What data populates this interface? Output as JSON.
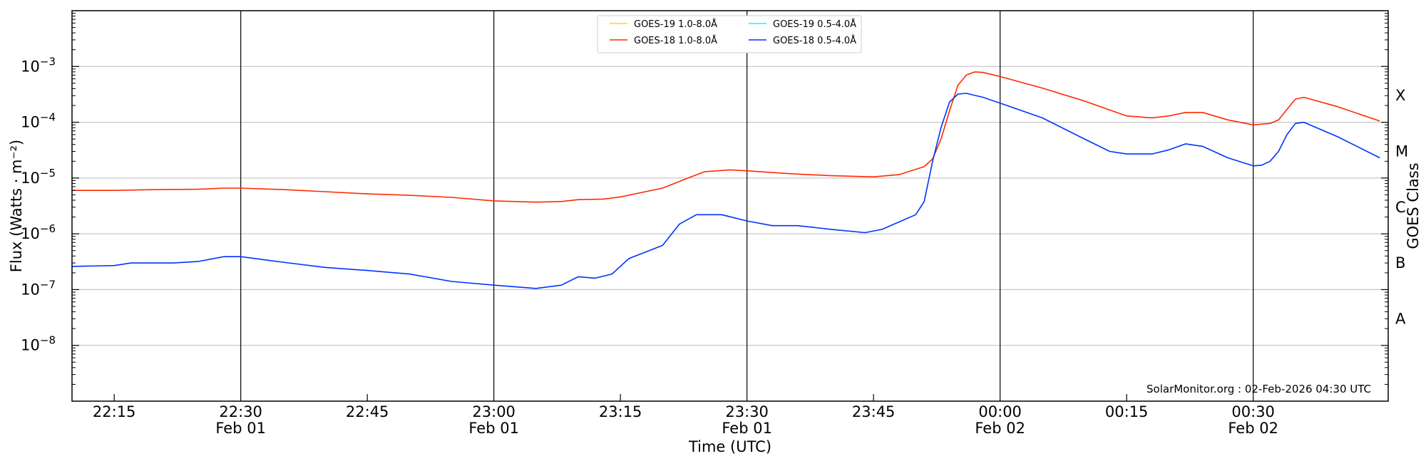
{
  "chart_data": {
    "type": "line",
    "ylabel": "Flux (Watts · m⁻²)",
    "y2label": "GOES Class",
    "xlabel": "Time (UTC)",
    "credit": "SolarMonitor.org : 02-Feb-2026 04:30 UTC",
    "y_scale": "log",
    "ylim": [
      1e-09,
      0.01
    ],
    "xlim": [
      "2026-02-01 22:10",
      "2026-02-02 00:46"
    ],
    "grid": "horizontal at decades; vertical lines at every half hour",
    "legend_position": "top-center",
    "y_ticks": [
      {
        "value": 1e-08,
        "base": "10",
        "exp": "−8"
      },
      {
        "value": 1e-07,
        "base": "10",
        "exp": "−7"
      },
      {
        "value": 1e-06,
        "base": "10",
        "exp": "−6"
      },
      {
        "value": 1e-05,
        "base": "10",
        "exp": "−5"
      },
      {
        "value": 0.0001,
        "base": "10",
        "exp": "−4"
      },
      {
        "value": 0.001,
        "base": "10",
        "exp": "−3"
      }
    ],
    "x_ticks": [
      {
        "time": "2026-02-01 22:15",
        "label": "22:15",
        "date": ""
      },
      {
        "time": "2026-02-01 22:30",
        "label": "22:30",
        "date": "Feb 01"
      },
      {
        "time": "2026-02-01 22:45",
        "label": "22:45",
        "date": ""
      },
      {
        "time": "2026-02-01 23:00",
        "label": "23:00",
        "date": "Feb 01"
      },
      {
        "time": "2026-02-01 23:15",
        "label": "23:15",
        "date": ""
      },
      {
        "time": "2026-02-01 23:30",
        "label": "23:30",
        "date": "Feb 01"
      },
      {
        "time": "2026-02-01 23:45",
        "label": "23:45",
        "date": ""
      },
      {
        "time": "2026-02-02 00:00",
        "label": "00:00",
        "date": "Feb 02"
      },
      {
        "time": "2026-02-02 00:15",
        "label": "00:15",
        "date": ""
      },
      {
        "time": "2026-02-02 00:30",
        "label": "00:30",
        "date": "Feb 02"
      }
    ],
    "goes_classes": [
      {
        "label": "A",
        "value": 3e-08
      },
      {
        "label": "B",
        "value": 3e-07
      },
      {
        "label": "C",
        "value": 3e-06
      },
      {
        "label": "M",
        "value": 3e-05
      },
      {
        "label": "X",
        "value": 0.0003
      }
    ],
    "series": [
      {
        "name": "GOES-19 1.0-8.0Å",
        "color": "#ffd700",
        "points": []
      },
      {
        "name": "GOES-19 0.5-4.0Å",
        "color": "#00ffff",
        "points": []
      },
      {
        "name": "GOES-18 1.0-8.0Å",
        "color": "#ff2a00",
        "points": [
          [
            "2026-02-01 22:10",
            6e-06
          ],
          [
            "2026-02-01 22:15",
            6e-06
          ],
          [
            "2026-02-01 22:20",
            6.2e-06
          ],
          [
            "2026-02-01 22:25",
            6.3e-06
          ],
          [
            "2026-02-01 22:28",
            6.6e-06
          ],
          [
            "2026-02-01 22:30",
            6.6e-06
          ],
          [
            "2026-02-01 22:35",
            6.2e-06
          ],
          [
            "2026-02-01 22:40",
            5.7e-06
          ],
          [
            "2026-02-01 22:45",
            5.2e-06
          ],
          [
            "2026-02-01 22:50",
            4.9e-06
          ],
          [
            "2026-02-01 22:55",
            4.5e-06
          ],
          [
            "2026-02-01 23:00",
            3.9e-06
          ],
          [
            "2026-02-01 23:05",
            3.7e-06
          ],
          [
            "2026-02-01 23:08",
            3.8e-06
          ],
          [
            "2026-02-01 23:10",
            4.1e-06
          ],
          [
            "2026-02-01 23:13",
            4.2e-06
          ],
          [
            "2026-02-01 23:15",
            4.6e-06
          ],
          [
            "2026-02-01 23:20",
            6.6e-06
          ],
          [
            "2026-02-01 23:23",
            1e-05
          ],
          [
            "2026-02-01 23:25",
            1.3e-05
          ],
          [
            "2026-02-01 23:28",
            1.4e-05
          ],
          [
            "2026-02-01 23:30",
            1.35e-05
          ],
          [
            "2026-02-01 23:35",
            1.2e-05
          ],
          [
            "2026-02-01 23:40",
            1.1e-05
          ],
          [
            "2026-02-01 23:45",
            1.05e-05
          ],
          [
            "2026-02-01 23:48",
            1.15e-05
          ],
          [
            "2026-02-01 23:51",
            1.6e-05
          ],
          [
            "2026-02-01 23:52",
            2.2e-05
          ],
          [
            "2026-02-01 23:53",
            5e-05
          ],
          [
            "2026-02-01 23:54",
            0.00016
          ],
          [
            "2026-02-01 23:55",
            0.00046
          ],
          [
            "2026-02-01 23:56",
            0.0007
          ],
          [
            "2026-02-01 23:57",
            0.0008
          ],
          [
            "2026-02-01 23:58",
            0.00078
          ],
          [
            "2026-02-02 00:00",
            0.00066
          ],
          [
            "2026-02-02 00:05",
            0.00041
          ],
          [
            "2026-02-02 00:10",
            0.00024
          ],
          [
            "2026-02-02 00:15",
            0.00013
          ],
          [
            "2026-02-02 00:18",
            0.00012
          ],
          [
            "2026-02-02 00:20",
            0.00013
          ],
          [
            "2026-02-02 00:22",
            0.00015
          ],
          [
            "2026-02-02 00:24",
            0.00015
          ],
          [
            "2026-02-02 00:27",
            0.00011
          ],
          [
            "2026-02-02 00:30",
            9e-05
          ],
          [
            "2026-02-02 00:32",
            9.5e-05
          ],
          [
            "2026-02-02 00:33",
            0.00011
          ],
          [
            "2026-02-02 00:34",
            0.00017
          ],
          [
            "2026-02-02 00:35",
            0.00026
          ],
          [
            "2026-02-02 00:36",
            0.00028
          ],
          [
            "2026-02-02 00:40",
            0.00019
          ],
          [
            "2026-02-02 00:45",
            0.000105
          ]
        ]
      },
      {
        "name": "GOES-18 0.5-4.0Å",
        "color": "#0033ff",
        "points": [
          [
            "2026-02-01 22:10",
            2.6e-07
          ],
          [
            "2026-02-01 22:15",
            2.7e-07
          ],
          [
            "2026-02-01 22:17",
            3e-07
          ],
          [
            "2026-02-01 22:22",
            3e-07
          ],
          [
            "2026-02-01 22:25",
            3.2e-07
          ],
          [
            "2026-02-01 22:28",
            3.9e-07
          ],
          [
            "2026-02-01 22:30",
            3.9e-07
          ],
          [
            "2026-02-01 22:35",
            3.1e-07
          ],
          [
            "2026-02-01 22:40",
            2.5e-07
          ],
          [
            "2026-02-01 22:45",
            2.2e-07
          ],
          [
            "2026-02-01 22:50",
            1.9e-07
          ],
          [
            "2026-02-01 22:55",
            1.4e-07
          ],
          [
            "2026-02-01 23:00",
            1.2e-07
          ],
          [
            "2026-02-01 23:05",
            1.05e-07
          ],
          [
            "2026-02-01 23:08",
            1.2e-07
          ],
          [
            "2026-02-01 23:10",
            1.7e-07
          ],
          [
            "2026-02-01 23:12",
            1.6e-07
          ],
          [
            "2026-02-01 23:14",
            1.9e-07
          ],
          [
            "2026-02-01 23:16",
            3.6e-07
          ],
          [
            "2026-02-01 23:20",
            6.2e-07
          ],
          [
            "2026-02-01 23:22",
            1.5e-06
          ],
          [
            "2026-02-01 23:24",
            2.2e-06
          ],
          [
            "2026-02-01 23:27",
            2.2e-06
          ],
          [
            "2026-02-01 23:30",
            1.7e-06
          ],
          [
            "2026-02-01 23:33",
            1.4e-06
          ],
          [
            "2026-02-01 23:36",
            1.4e-06
          ],
          [
            "2026-02-01 23:40",
            1.2e-06
          ],
          [
            "2026-02-01 23:44",
            1.05e-06
          ],
          [
            "2026-02-01 23:46",
            1.2e-06
          ],
          [
            "2026-02-01 23:50",
            2.2e-06
          ],
          [
            "2026-02-01 23:51",
            3.8e-06
          ],
          [
            "2026-02-01 23:52",
            2e-05
          ],
          [
            "2026-02-01 23:53",
            8e-05
          ],
          [
            "2026-02-01 23:54",
            0.00023
          ],
          [
            "2026-02-01 23:55",
            0.00032
          ],
          [
            "2026-02-01 23:56",
            0.00033
          ],
          [
            "2026-02-01 23:58",
            0.00028
          ],
          [
            "2026-02-02 00:00",
            0.00022
          ],
          [
            "2026-02-02 00:05",
            0.00012
          ],
          [
            "2026-02-02 00:10",
            5e-05
          ],
          [
            "2026-02-02 00:13",
            3e-05
          ],
          [
            "2026-02-02 00:15",
            2.7e-05
          ],
          [
            "2026-02-02 00:18",
            2.7e-05
          ],
          [
            "2026-02-02 00:20",
            3.2e-05
          ],
          [
            "2026-02-02 00:22",
            4.1e-05
          ],
          [
            "2026-02-02 00:24",
            3.7e-05
          ],
          [
            "2026-02-02 00:27",
            2.3e-05
          ],
          [
            "2026-02-02 00:30",
            1.65e-05
          ],
          [
            "2026-02-02 00:31",
            1.7e-05
          ],
          [
            "2026-02-02 00:32",
            2e-05
          ],
          [
            "2026-02-02 00:33",
            3e-05
          ],
          [
            "2026-02-02 00:34",
            6e-05
          ],
          [
            "2026-02-02 00:35",
            9.5e-05
          ],
          [
            "2026-02-02 00:36",
            0.0001
          ],
          [
            "2026-02-02 00:40",
            5.5e-05
          ],
          [
            "2026-02-02 00:45",
            2.3e-05
          ]
        ]
      }
    ]
  }
}
